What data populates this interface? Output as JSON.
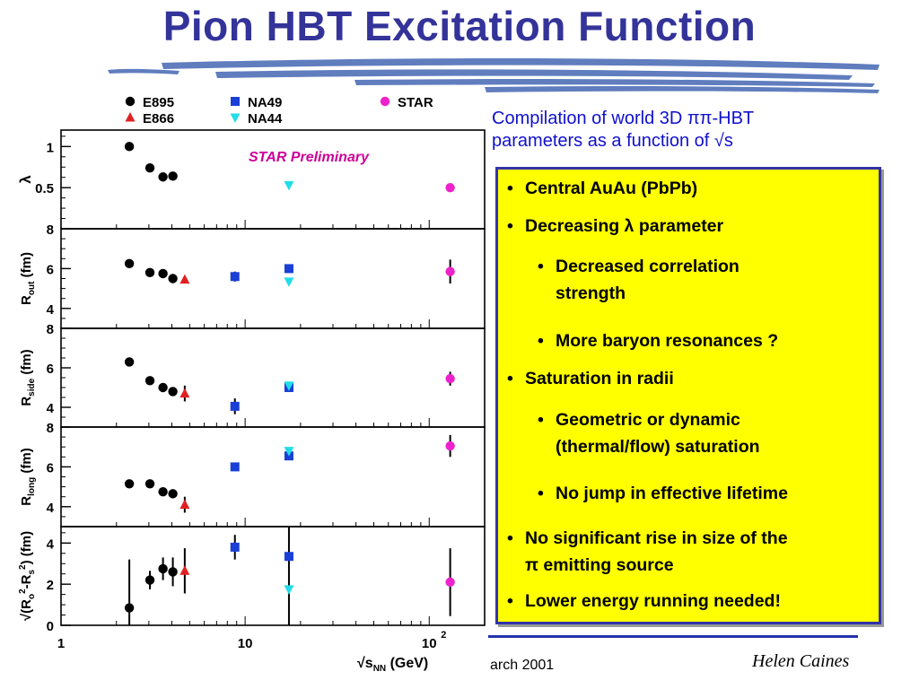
{
  "slide": {
    "title": "Pion HBT Excitation Function",
    "caption_line1": "Compilation of world 3D ππ-HBT",
    "caption_line2": "parameters as a function of √s",
    "footer_date": "arch 2001",
    "footer_author": "Helen Caines",
    "colors": {
      "title": "#333399",
      "caption": "#1010cc",
      "box_fill": "#ffff00",
      "box_border": "#3333aa",
      "streaks": "#4f6fb8"
    }
  },
  "bullets": [
    {
      "level": 1,
      "text": "Central AuAu (PbPb)"
    },
    {
      "level": 1,
      "text": "Decreasing λ parameter"
    },
    {
      "level": 2,
      "text": "Decreased correlation",
      "cont": "strength"
    },
    {
      "level": 2,
      "text": "More baryon resonances ?"
    },
    {
      "level": 1,
      "text": "Saturation in radii"
    },
    {
      "level": 2,
      "text": "Geometric or dynamic",
      "cont": "(thermal/flow) saturation"
    },
    {
      "level": 2,
      "text": "No jump in effective lifetime"
    },
    {
      "level": 1,
      "text": "No significant rise in size of the",
      "cont": "π emitting source"
    },
    {
      "level": 1,
      "text": "Lower energy running needed!"
    }
  ],
  "chart_data": {
    "type": "scatter",
    "x_scale": "log",
    "xlim": [
      1,
      200
    ],
    "xlabel": "√s",
    "xlabel_sub": "NN",
    "xlabel_unit": " (GeV)",
    "x_ticks": [
      {
        "v": 1,
        "label": "1"
      },
      {
        "v": 10,
        "label": "10"
      },
      {
        "v": 100,
        "label": "10",
        "sup": "2"
      }
    ],
    "annotation": "STAR Preliminary",
    "annotation_color": "#cc0099",
    "legend": [
      {
        "name": "E895",
        "color": "#000000",
        "marker": "circle"
      },
      {
        "name": "E866",
        "color": "#e02020",
        "marker": "triangle-up"
      },
      {
        "name": "NA49",
        "color": "#1a3fd6",
        "marker": "square"
      },
      {
        "name": "NA44",
        "color": "#22dde8",
        "marker": "triangle-down"
      },
      {
        "name": "STAR",
        "color": "#ee22cc",
        "marker": "circle"
      }
    ],
    "panels": [
      {
        "ylabel": "λ",
        "ylim": [
          0,
          1.2
        ],
        "yticks": [
          {
            "v": 0.5,
            "label": "0.5"
          },
          {
            "v": 1,
            "label": "1"
          }
        ],
        "points": [
          {
            "series": "E895",
            "x": 2.35,
            "y": 1.0
          },
          {
            "series": "E895",
            "x": 3.04,
            "y": 0.74
          },
          {
            "series": "E895",
            "x": 3.58,
            "y": 0.63
          },
          {
            "series": "E895",
            "x": 4.05,
            "y": 0.64
          },
          {
            "series": "NA44",
            "x": 17.3,
            "y": 0.53
          },
          {
            "series": "STAR",
            "x": 130,
            "y": 0.5
          }
        ]
      },
      {
        "ylabel": "R",
        "ylabel_sub": "out",
        "ylabel_unit": " (fm)",
        "ylim": [
          3,
          8
        ],
        "yticks": [
          {
            "v": 4,
            "label": "4"
          },
          {
            "v": 6,
            "label": "6"
          },
          {
            "v": 8,
            "label": "8"
          }
        ],
        "points": [
          {
            "series": "E895",
            "x": 2.35,
            "y": 6.25
          },
          {
            "series": "E895",
            "x": 3.04,
            "y": 5.8
          },
          {
            "series": "E895",
            "x": 3.58,
            "y": 5.75
          },
          {
            "series": "E895",
            "x": 4.05,
            "y": 5.5
          },
          {
            "series": "E866",
            "x": 4.7,
            "y": 5.45
          },
          {
            "series": "NA49",
            "x": 8.8,
            "y": 5.6,
            "err": 0.25
          },
          {
            "series": "NA49",
            "x": 17.3,
            "y": 6.0
          },
          {
            "series": "NA44",
            "x": 17.3,
            "y": 5.35
          },
          {
            "series": "STAR",
            "x": 130,
            "y": 5.85,
            "err": 0.6
          }
        ]
      },
      {
        "ylabel": "R",
        "ylabel_sub": "side",
        "ylabel_unit": " (fm)",
        "ylim": [
          3,
          8
        ],
        "yticks": [
          {
            "v": 4,
            "label": "4"
          },
          {
            "v": 6,
            "label": "6"
          },
          {
            "v": 8,
            "label": "8"
          }
        ],
        "points": [
          {
            "series": "E895",
            "x": 2.35,
            "y": 6.3
          },
          {
            "series": "E895",
            "x": 3.04,
            "y": 5.35
          },
          {
            "series": "E895",
            "x": 3.58,
            "y": 5.0
          },
          {
            "series": "E895",
            "x": 4.05,
            "y": 4.8
          },
          {
            "series": "E866",
            "x": 4.7,
            "y": 4.7,
            "err": 0.4
          },
          {
            "series": "NA49",
            "x": 8.8,
            "y": 4.05,
            "err": 0.4
          },
          {
            "series": "NA49",
            "x": 17.3,
            "y": 5.0
          },
          {
            "series": "NA44",
            "x": 17.3,
            "y": 5.1
          },
          {
            "series": "STAR",
            "x": 130,
            "y": 5.45,
            "err": 0.35
          }
        ]
      },
      {
        "ylabel": "R",
        "ylabel_sub": "long",
        "ylabel_unit": " (fm)",
        "ylim": [
          3,
          8
        ],
        "yticks": [
          {
            "v": 4,
            "label": "4"
          },
          {
            "v": 6,
            "label": "6"
          },
          {
            "v": 8,
            "label": "8"
          }
        ],
        "points": [
          {
            "series": "E895",
            "x": 2.35,
            "y": 5.15
          },
          {
            "series": "E895",
            "x": 3.04,
            "y": 5.15
          },
          {
            "series": "E895",
            "x": 3.58,
            "y": 4.75
          },
          {
            "series": "E895",
            "x": 4.05,
            "y": 4.65
          },
          {
            "series": "E866",
            "x": 4.7,
            "y": 4.1,
            "err": 0.4
          },
          {
            "series": "NA49",
            "x": 8.8,
            "y": 6.0
          },
          {
            "series": "NA49",
            "x": 17.3,
            "y": 6.55
          },
          {
            "series": "NA44",
            "x": 17.3,
            "y": 6.8
          },
          {
            "series": "STAR",
            "x": 130,
            "y": 7.05,
            "err": 0.55
          }
        ]
      },
      {
        "ylabel": "√(R",
        "ylabel_sub": "o",
        "ylabel_sup": "2",
        "ylabel_mid": "-R",
        "ylabel_sub2": "s",
        "ylabel_sup2": "2",
        "ylabel_end": ") (fm)",
        "ylim": [
          0,
          4.8
        ],
        "yticks": [
          {
            "v": 0,
            "label": "0"
          },
          {
            "v": 2,
            "label": "2"
          },
          {
            "v": 4,
            "label": "4"
          }
        ],
        "points": [
          {
            "series": "E895",
            "x": 2.35,
            "y": 0.85,
            "err": 2.35
          },
          {
            "series": "E895",
            "x": 3.04,
            "y": 2.2,
            "err": 0.45
          },
          {
            "series": "E895",
            "x": 3.58,
            "y": 2.75,
            "err": 0.55
          },
          {
            "series": "E895",
            "x": 4.05,
            "y": 2.6,
            "err": 0.7
          },
          {
            "series": "E866",
            "x": 4.7,
            "y": 2.65,
            "err": 1.1
          },
          {
            "series": "NA49",
            "x": 8.8,
            "y": 3.8,
            "err": 0.6
          },
          {
            "series": "NA49",
            "x": 17.3,
            "y": 3.35,
            "err": 3.35
          },
          {
            "series": "NA44",
            "x": 17.3,
            "y": 1.75
          },
          {
            "series": "STAR",
            "x": 130,
            "y": 2.1,
            "err": 1.65
          }
        ]
      }
    ]
  }
}
